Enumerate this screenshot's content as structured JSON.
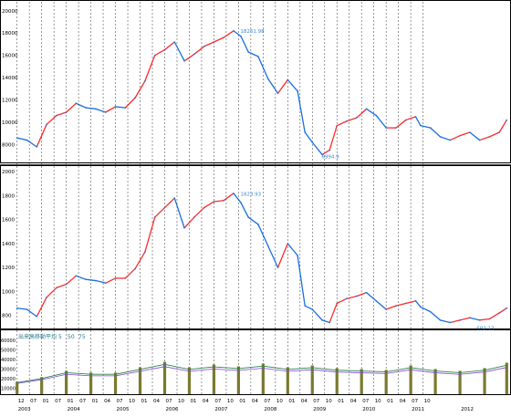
{
  "colors": {
    "background": "#ffffff",
    "grid": "#555555",
    "up": "#ff2a2a",
    "down": "#1a6fe0",
    "volume": "#7a7a30",
    "volume_ma_1": "#2f7f4f",
    "volume_ma_2": "#7a4ad0",
    "annotation": "#3a8ad6",
    "frame": "#000000"
  },
  "chart_data": [
    {
      "type": "line",
      "panel": "price_upper",
      "yticks": [
        8000,
        10000,
        12000,
        14000,
        16000,
        18000,
        20000
      ],
      "ylim": [
        6400,
        20800
      ],
      "x": [
        2003.0,
        2003.2,
        2003.4,
        2003.6,
        2003.8,
        2004.0,
        2004.2,
        2004.4,
        2004.6,
        2004.8,
        2005.0,
        2005.2,
        2005.4,
        2005.6,
        2005.8,
        2006.0,
        2006.2,
        2006.4,
        2006.6,
        2006.8,
        2007.0,
        2007.2,
        2007.4,
        2007.55,
        2007.7,
        2007.9,
        2008.1,
        2008.3,
        2008.5,
        2008.7,
        2008.85,
        2009.0,
        2009.2,
        2009.35,
        2009.5,
        2009.7,
        2009.9,
        2010.1,
        2010.3,
        2010.5,
        2010.7,
        2010.9,
        2011.1,
        2011.2,
        2011.4,
        2011.6,
        2011.8,
        2012.0,
        2012.2,
        2012.4,
        2012.6,
        2012.8,
        2012.95
      ],
      "values": [
        8600,
        8400,
        7800,
        9800,
        10600,
        10900,
        11700,
        11300,
        11200,
        10900,
        11400,
        11300,
        12200,
        13700,
        16000,
        16500,
        17200,
        15500,
        16100,
        16800,
        17200,
        17600,
        18200,
        17700,
        16300,
        15900,
        13900,
        12600,
        13800,
        12800,
        9100,
        8200,
        7100,
        7500,
        9700,
        10100,
        10400,
        11200,
        10600,
        9500,
        9500,
        10200,
        10500,
        9700,
        9500,
        8700,
        8400,
        8800,
        9100,
        8400,
        8700,
        9100,
        10200
      ],
      "annotations": [
        {
          "text": "18261.98",
          "x": 2007.5,
          "y": 18262
        },
        {
          "text": "6994.9",
          "x": 2009.15,
          "y": 6995
        }
      ]
    },
    {
      "type": "line",
      "panel": "price_lower",
      "yticks": [
        800,
        1000,
        1200,
        1400,
        1600,
        1800,
        2000
      ],
      "ylim": [
        690,
        2040
      ],
      "x": [
        2003.0,
        2003.2,
        2003.4,
        2003.6,
        2003.8,
        2004.0,
        2004.2,
        2004.4,
        2004.6,
        2004.8,
        2005.0,
        2005.2,
        2005.4,
        2005.6,
        2005.8,
        2006.0,
        2006.2,
        2006.4,
        2006.6,
        2006.8,
        2007.0,
        2007.2,
        2007.4,
        2007.55,
        2007.7,
        2007.9,
        2008.1,
        2008.3,
        2008.5,
        2008.7,
        2008.85,
        2009.0,
        2009.2,
        2009.35,
        2009.5,
        2009.7,
        2009.9,
        2010.1,
        2010.3,
        2010.5,
        2010.7,
        2010.9,
        2011.1,
        2011.2,
        2011.4,
        2011.6,
        2011.8,
        2012.0,
        2012.2,
        2012.4,
        2012.6,
        2012.8,
        2012.95
      ],
      "values": [
        860,
        850,
        790,
        950,
        1030,
        1060,
        1130,
        1100,
        1090,
        1070,
        1110,
        1110,
        1190,
        1330,
        1620,
        1700,
        1780,
        1530,
        1620,
        1700,
        1750,
        1760,
        1820,
        1740,
        1620,
        1560,
        1380,
        1200,
        1400,
        1300,
        880,
        850,
        760,
        740,
        900,
        940,
        960,
        990,
        920,
        850,
        880,
        900,
        920,
        870,
        830,
        760,
        740,
        760,
        780,
        760,
        770,
        820,
        860
      ],
      "annotations": [
        {
          "text": "1823.93",
          "x": 2007.5,
          "y": 1824
        },
        {
          "text": "692.13",
          "x": 2012.3,
          "y": 703
        }
      ]
    },
    {
      "type": "bar",
      "panel": "volume",
      "title": "出来高移動平均",
      "ma_periods": [
        "5",
        "50",
        "75"
      ],
      "yticks": [
        "60000",
        "50000",
        "40000",
        "30000",
        "20000",
        "10000"
      ],
      "x": [
        2003.0,
        2003.5,
        2004.0,
        2004.5,
        2005.0,
        2005.5,
        2006.0,
        2006.5,
        2007.0,
        2007.5,
        2008.0,
        2008.5,
        2009.0,
        2009.5,
        2010.0,
        2010.5,
        2011.0,
        2011.5,
        2012.0,
        2012.5,
        2012.95
      ],
      "values": [
        14000,
        19000,
        26000,
        24000,
        24000,
        30000,
        36000,
        30000,
        33000,
        31000,
        34000,
        30000,
        32000,
        29000,
        28000,
        27000,
        32000,
        28000,
        26000,
        29000,
        35000
      ]
    }
  ],
  "x_axis": {
    "months": [
      "12",
      "07",
      "01",
      "07",
      "01",
      "07",
      "01",
      "04",
      "07",
      "10",
      "01",
      "04",
      "07",
      "10",
      "01",
      "04",
      "07",
      "10",
      "01",
      "04",
      "07",
      "10",
      "01",
      "04",
      "07",
      "10",
      "01",
      "04",
      "07",
      "10",
      "01",
      "04",
      "07",
      "10"
    ],
    "years": [
      "2003",
      "2004",
      "2005",
      "2006",
      "2007",
      "2008",
      "2009",
      "2010",
      "2011",
      "2012"
    ]
  }
}
